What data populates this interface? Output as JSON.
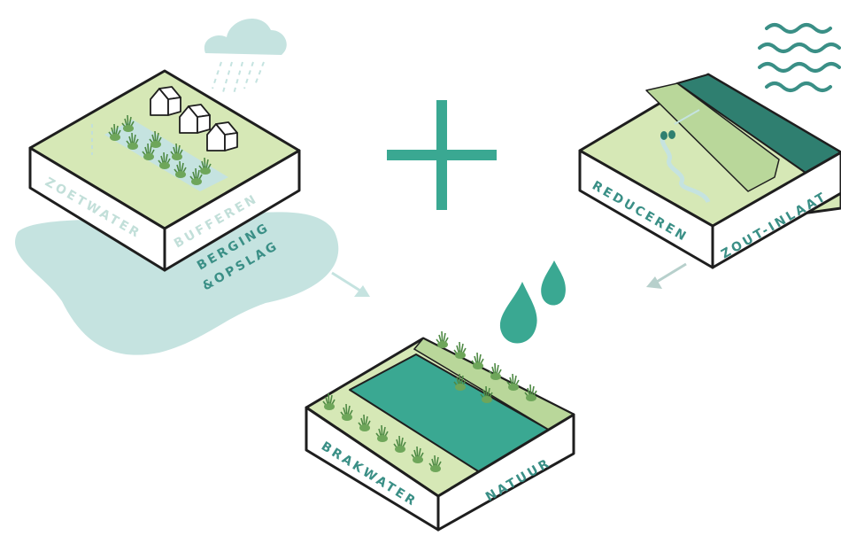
{
  "blocks": {
    "freshwater": {
      "face_left": "ZOETWATER",
      "face_right": "BUFFEREN",
      "caption_line1": "BERGING",
      "caption_line2": "&OPSLAG"
    },
    "salt": {
      "face_left": "REDUCEREN",
      "face_right": "ZOUT-INLAAT"
    },
    "brackish": {
      "face_left": "BRAKWATER",
      "face_right": "NATUUR"
    }
  },
  "colors": {
    "teal": "#3aa892",
    "teal_dark": "#2f7f70",
    "light_green": "#d6e8b6",
    "pale_blue": "#c5e3e0",
    "outline": "#1e1e1e",
    "label_light": "#c2dfd9",
    "label_dark": "#3a8f86",
    "plant_green": "#4f8a45"
  },
  "icons": [
    "cloud-rain-icon",
    "waves-icon",
    "plus-icon",
    "droplets-icon",
    "house-icon",
    "arrow-icon"
  ]
}
